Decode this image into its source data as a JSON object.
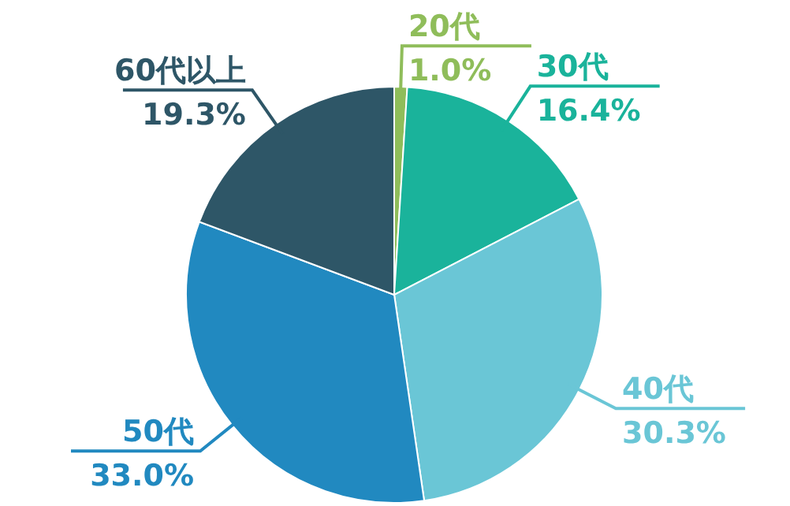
{
  "chart_data": {
    "type": "pie",
    "categories": [
      "20代",
      "30代",
      "40代",
      "50代",
      "60代以上"
    ],
    "values": [
      1.0,
      16.4,
      30.3,
      33.0,
      19.3
    ],
    "value_labels": [
      "1.0%",
      "16.4%",
      "30.3%",
      "33.0%",
      "19.3%"
    ],
    "colors": [
      "#8fbd5a",
      "#1ab39b",
      "#6ac6d6",
      "#2189c0",
      "#2e5667"
    ]
  }
}
